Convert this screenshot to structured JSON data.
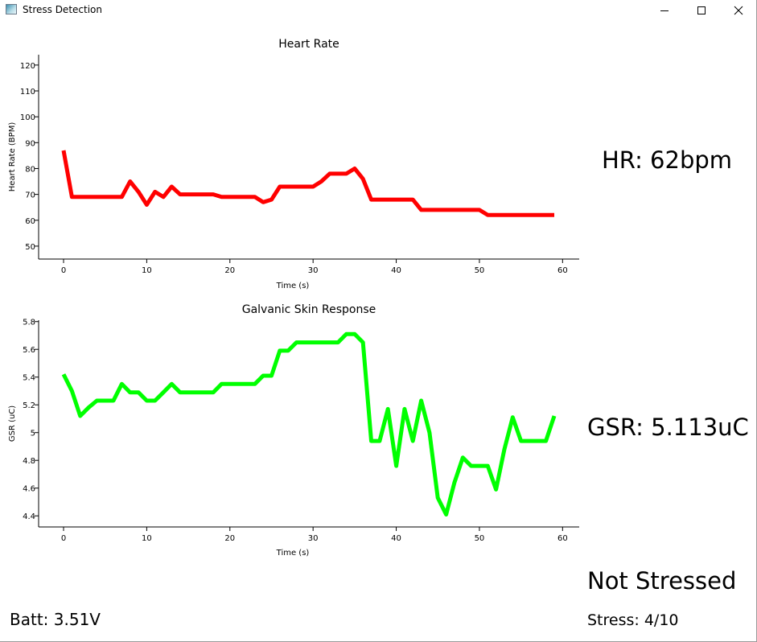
{
  "window": {
    "title": "Stress Detection",
    "minimize_icon": "minimize-icon",
    "maximize_icon": "maximize-icon",
    "close_icon": "close-icon"
  },
  "readouts": {
    "hr": "HR: 62bpm",
    "gsr": "GSR: 5.113uC",
    "status": "Not Stressed",
    "battery": "Batt: 3.51V",
    "stress": "Stress: 4/10"
  },
  "colors": {
    "hr_line": "#ff0000",
    "gsr_line": "#00ff00"
  },
  "chart_data": [
    {
      "type": "line",
      "title": "Heart Rate",
      "xlabel": "Time (s)",
      "ylabel": "Heart Rate (BPM)",
      "xlim": [
        -3,
        62
      ],
      "ylim": [
        45,
        124
      ],
      "xticks": [
        0,
        10,
        20,
        30,
        40,
        50,
        60
      ],
      "yticks": [
        50,
        60,
        70,
        80,
        90,
        100,
        110,
        120
      ],
      "ytick_labels": [
        "50",
        "60",
        "70",
        "80",
        "90",
        "100",
        "110",
        "120"
      ],
      "color": "#ff0000",
      "x": [
        0,
        1,
        2,
        3,
        4,
        5,
        6,
        7,
        8,
        9,
        10,
        11,
        12,
        13,
        14,
        15,
        16,
        17,
        18,
        19,
        20,
        21,
        22,
        23,
        24,
        25,
        26,
        27,
        28,
        29,
        30,
        31,
        32,
        33,
        34,
        35,
        36,
        37,
        38,
        39,
        40,
        41,
        42,
        43,
        44,
        45,
        46,
        47,
        48,
        49,
        50,
        51,
        52,
        53,
        54,
        55,
        56,
        57,
        58,
        59
      ],
      "values": [
        87,
        69,
        69,
        69,
        69,
        69,
        69,
        69,
        75,
        71,
        66,
        71,
        69,
        73,
        70,
        70,
        70,
        70,
        70,
        69,
        69,
        69,
        69,
        69,
        67,
        68,
        73,
        73,
        73,
        73,
        73,
        75,
        78,
        78,
        78,
        80,
        76,
        68,
        68,
        68,
        68,
        68,
        68,
        64,
        64,
        64,
        64,
        64,
        64,
        64,
        64,
        62,
        62,
        62,
        62,
        62,
        62,
        62,
        62,
        62
      ]
    },
    {
      "type": "line",
      "title": "Galvanic Skin Response",
      "xlabel": "Time (s)",
      "ylabel": "GSR (uC)",
      "xlim": [
        -3,
        62
      ],
      "ylim": [
        4.32,
        5.81
      ],
      "xticks": [
        0,
        10,
        20,
        30,
        40,
        50,
        60
      ],
      "yticks": [
        4.4,
        4.6,
        4.8,
        5.0,
        5.2,
        5.4,
        5.6,
        5.8
      ],
      "ytick_labels": [
        "4.4",
        "4.6",
        "4.8",
        "5",
        "5.2",
        "5.4",
        "5.6",
        "5.8"
      ],
      "color": "#00ff00",
      "x": [
        0,
        1,
        2,
        3,
        4,
        5,
        6,
        7,
        8,
        9,
        10,
        11,
        12,
        13,
        14,
        15,
        16,
        17,
        18,
        19,
        20,
        21,
        22,
        23,
        24,
        25,
        26,
        27,
        28,
        29,
        30,
        31,
        32,
        33,
        34,
        35,
        36,
        37,
        38,
        39,
        40,
        41,
        42,
        43,
        44,
        45,
        46,
        47,
        48,
        49,
        50,
        51,
        52,
        53,
        54,
        55,
        56,
        57,
        58,
        59
      ],
      "values": [
        5.42,
        5.3,
        5.12,
        5.18,
        5.23,
        5.23,
        5.23,
        5.35,
        5.29,
        5.29,
        5.23,
        5.23,
        5.29,
        5.35,
        5.29,
        5.29,
        5.29,
        5.29,
        5.29,
        5.35,
        5.35,
        5.35,
        5.35,
        5.35,
        5.41,
        5.41,
        5.59,
        5.59,
        5.65,
        5.65,
        5.65,
        5.65,
        5.65,
        5.65,
        5.71,
        5.71,
        5.65,
        4.94,
        4.94,
        5.17,
        4.76,
        5.17,
        4.94,
        5.23,
        5.0,
        4.53,
        4.41,
        4.64,
        4.82,
        4.76,
        4.76,
        4.76,
        4.59,
        4.88,
        5.11,
        4.94,
        4.94,
        4.94,
        4.94,
        5.12
      ]
    }
  ]
}
